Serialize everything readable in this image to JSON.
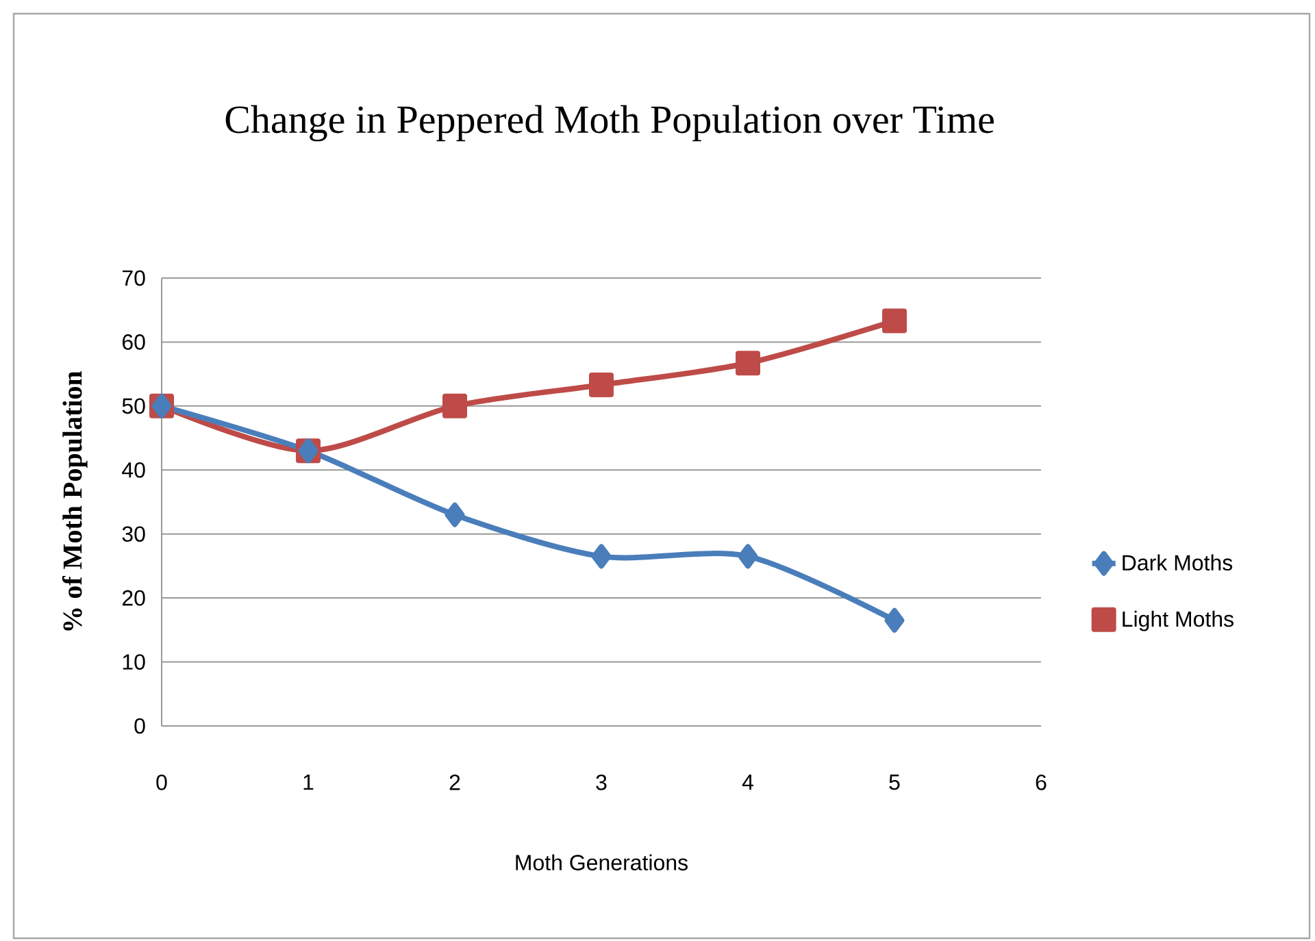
{
  "chart_data": {
    "type": "line",
    "title": "Change in Peppered Moth Population over Time",
    "xlabel": "Moth Generations",
    "ylabel": "% of Moth Population",
    "x": [
      0,
      1,
      2,
      3,
      4,
      5
    ],
    "series": [
      {
        "name": "Dark Moths",
        "color": "#4a7ebb",
        "marker": "diamond",
        "values": [
          50,
          43,
          33,
          26.5,
          26.5,
          16.5
        ]
      },
      {
        "name": "Light Moths",
        "color": "#be4b48",
        "marker": "square",
        "values": [
          50,
          43,
          50,
          53.3,
          56.7,
          63.3
        ]
      }
    ],
    "xlim": [
      0,
      6
    ],
    "xticks": [
      0,
      1,
      2,
      3,
      4,
      5,
      6
    ],
    "ylim": [
      0,
      70
    ],
    "yticks": [
      0,
      10,
      20,
      30,
      40,
      50,
      60,
      70
    ],
    "grid": "y",
    "legend": "right",
    "line_style": "solid"
  }
}
